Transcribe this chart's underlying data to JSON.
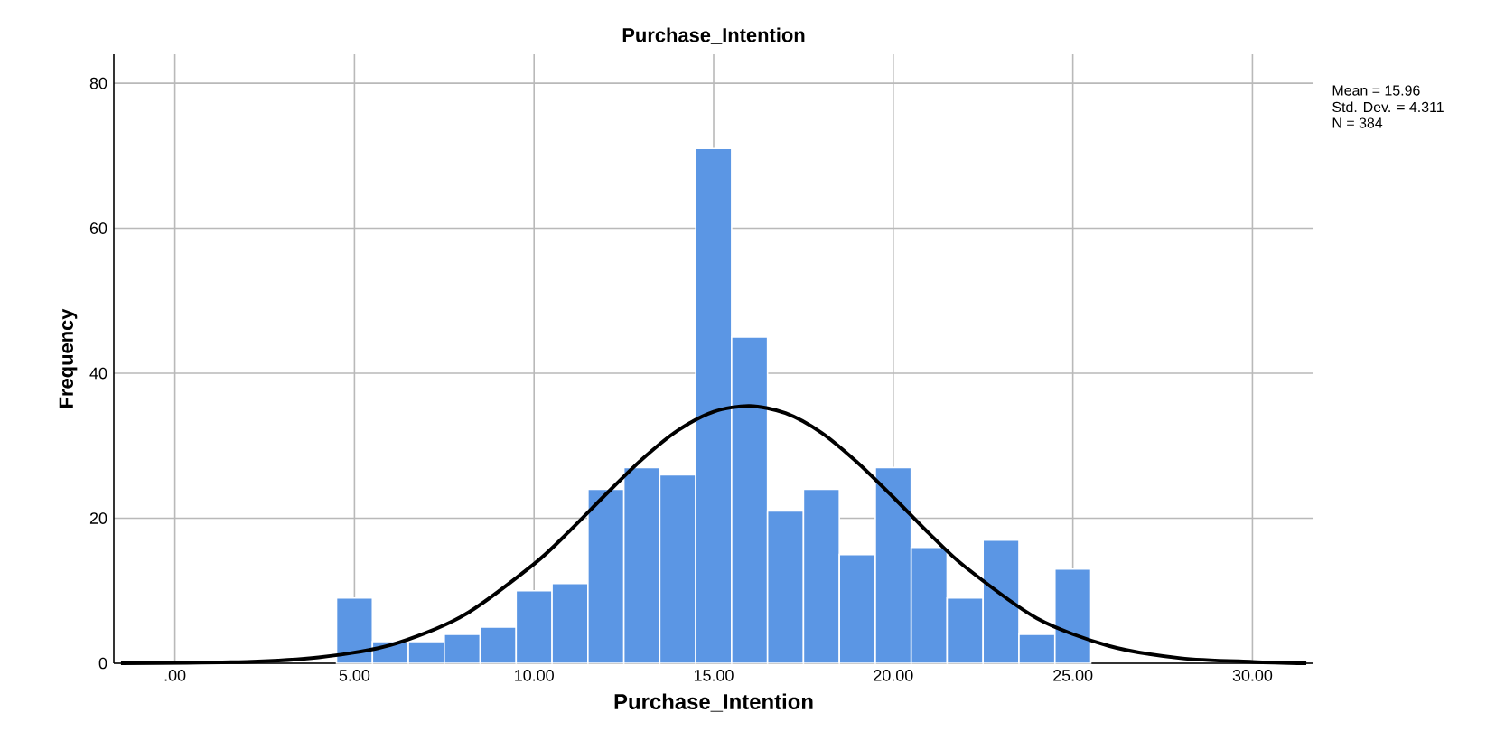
{
  "chart_data": {
    "type": "histogram",
    "title": "Purchase_Intention",
    "xlabel": "Purchase_Intention",
    "ylabel": "Frequency",
    "bins": [
      4.5,
      5.5,
      6.5,
      7.5,
      8.5,
      9.5,
      10.5,
      11.5,
      12.5,
      13.5,
      14.5,
      15.5,
      16.5,
      17.5,
      18.5,
      19.5,
      20.5,
      21.5,
      22.5,
      23.5,
      24.5,
      25.5
    ],
    "values": [
      9,
      3,
      3,
      4,
      5,
      10,
      11,
      24,
      27,
      26,
      71,
      45,
      21,
      24,
      15,
      27,
      16,
      9,
      17,
      4,
      13
    ],
    "color": "#5b96e4",
    "series": [
      {
        "type": "line",
        "color": "#000000",
        "x": [
          -1.5,
          2,
          4,
          6,
          8,
          10,
          11,
          12,
          13,
          14,
          15,
          16,
          17,
          18,
          19,
          20,
          21,
          22,
          24,
          26,
          28,
          30,
          31.5
        ],
        "values": [
          0,
          0.2,
          0.8,
          2.5,
          6.5,
          13.7,
          18.3,
          23.3,
          28.1,
          32.1,
          34.7,
          35.5,
          34.5,
          31.8,
          27.7,
          22.9,
          17.9,
          13.3,
          6.2,
          2.4,
          0.7,
          0.2,
          0
        ]
      }
    ],
    "xlim": [
      -1.7,
      31.7
    ],
    "ylim": [
      0,
      84
    ],
    "xticks": [
      {
        "value": 0,
        "label": ".00"
      },
      {
        "value": 5,
        "label": "5.00"
      },
      {
        "value": 10,
        "label": "10.00"
      },
      {
        "value": 15,
        "label": "15.00"
      },
      {
        "value": 20,
        "label": "20.00"
      },
      {
        "value": 25,
        "label": "25.00"
      },
      {
        "value": 30,
        "label": "30.00"
      }
    ],
    "yticks": [
      0,
      20,
      40,
      60,
      80
    ],
    "grid": true,
    "annotations": [
      "Mean = 15.96",
      "Std. Dev. = 4.311",
      "N = 384"
    ]
  }
}
